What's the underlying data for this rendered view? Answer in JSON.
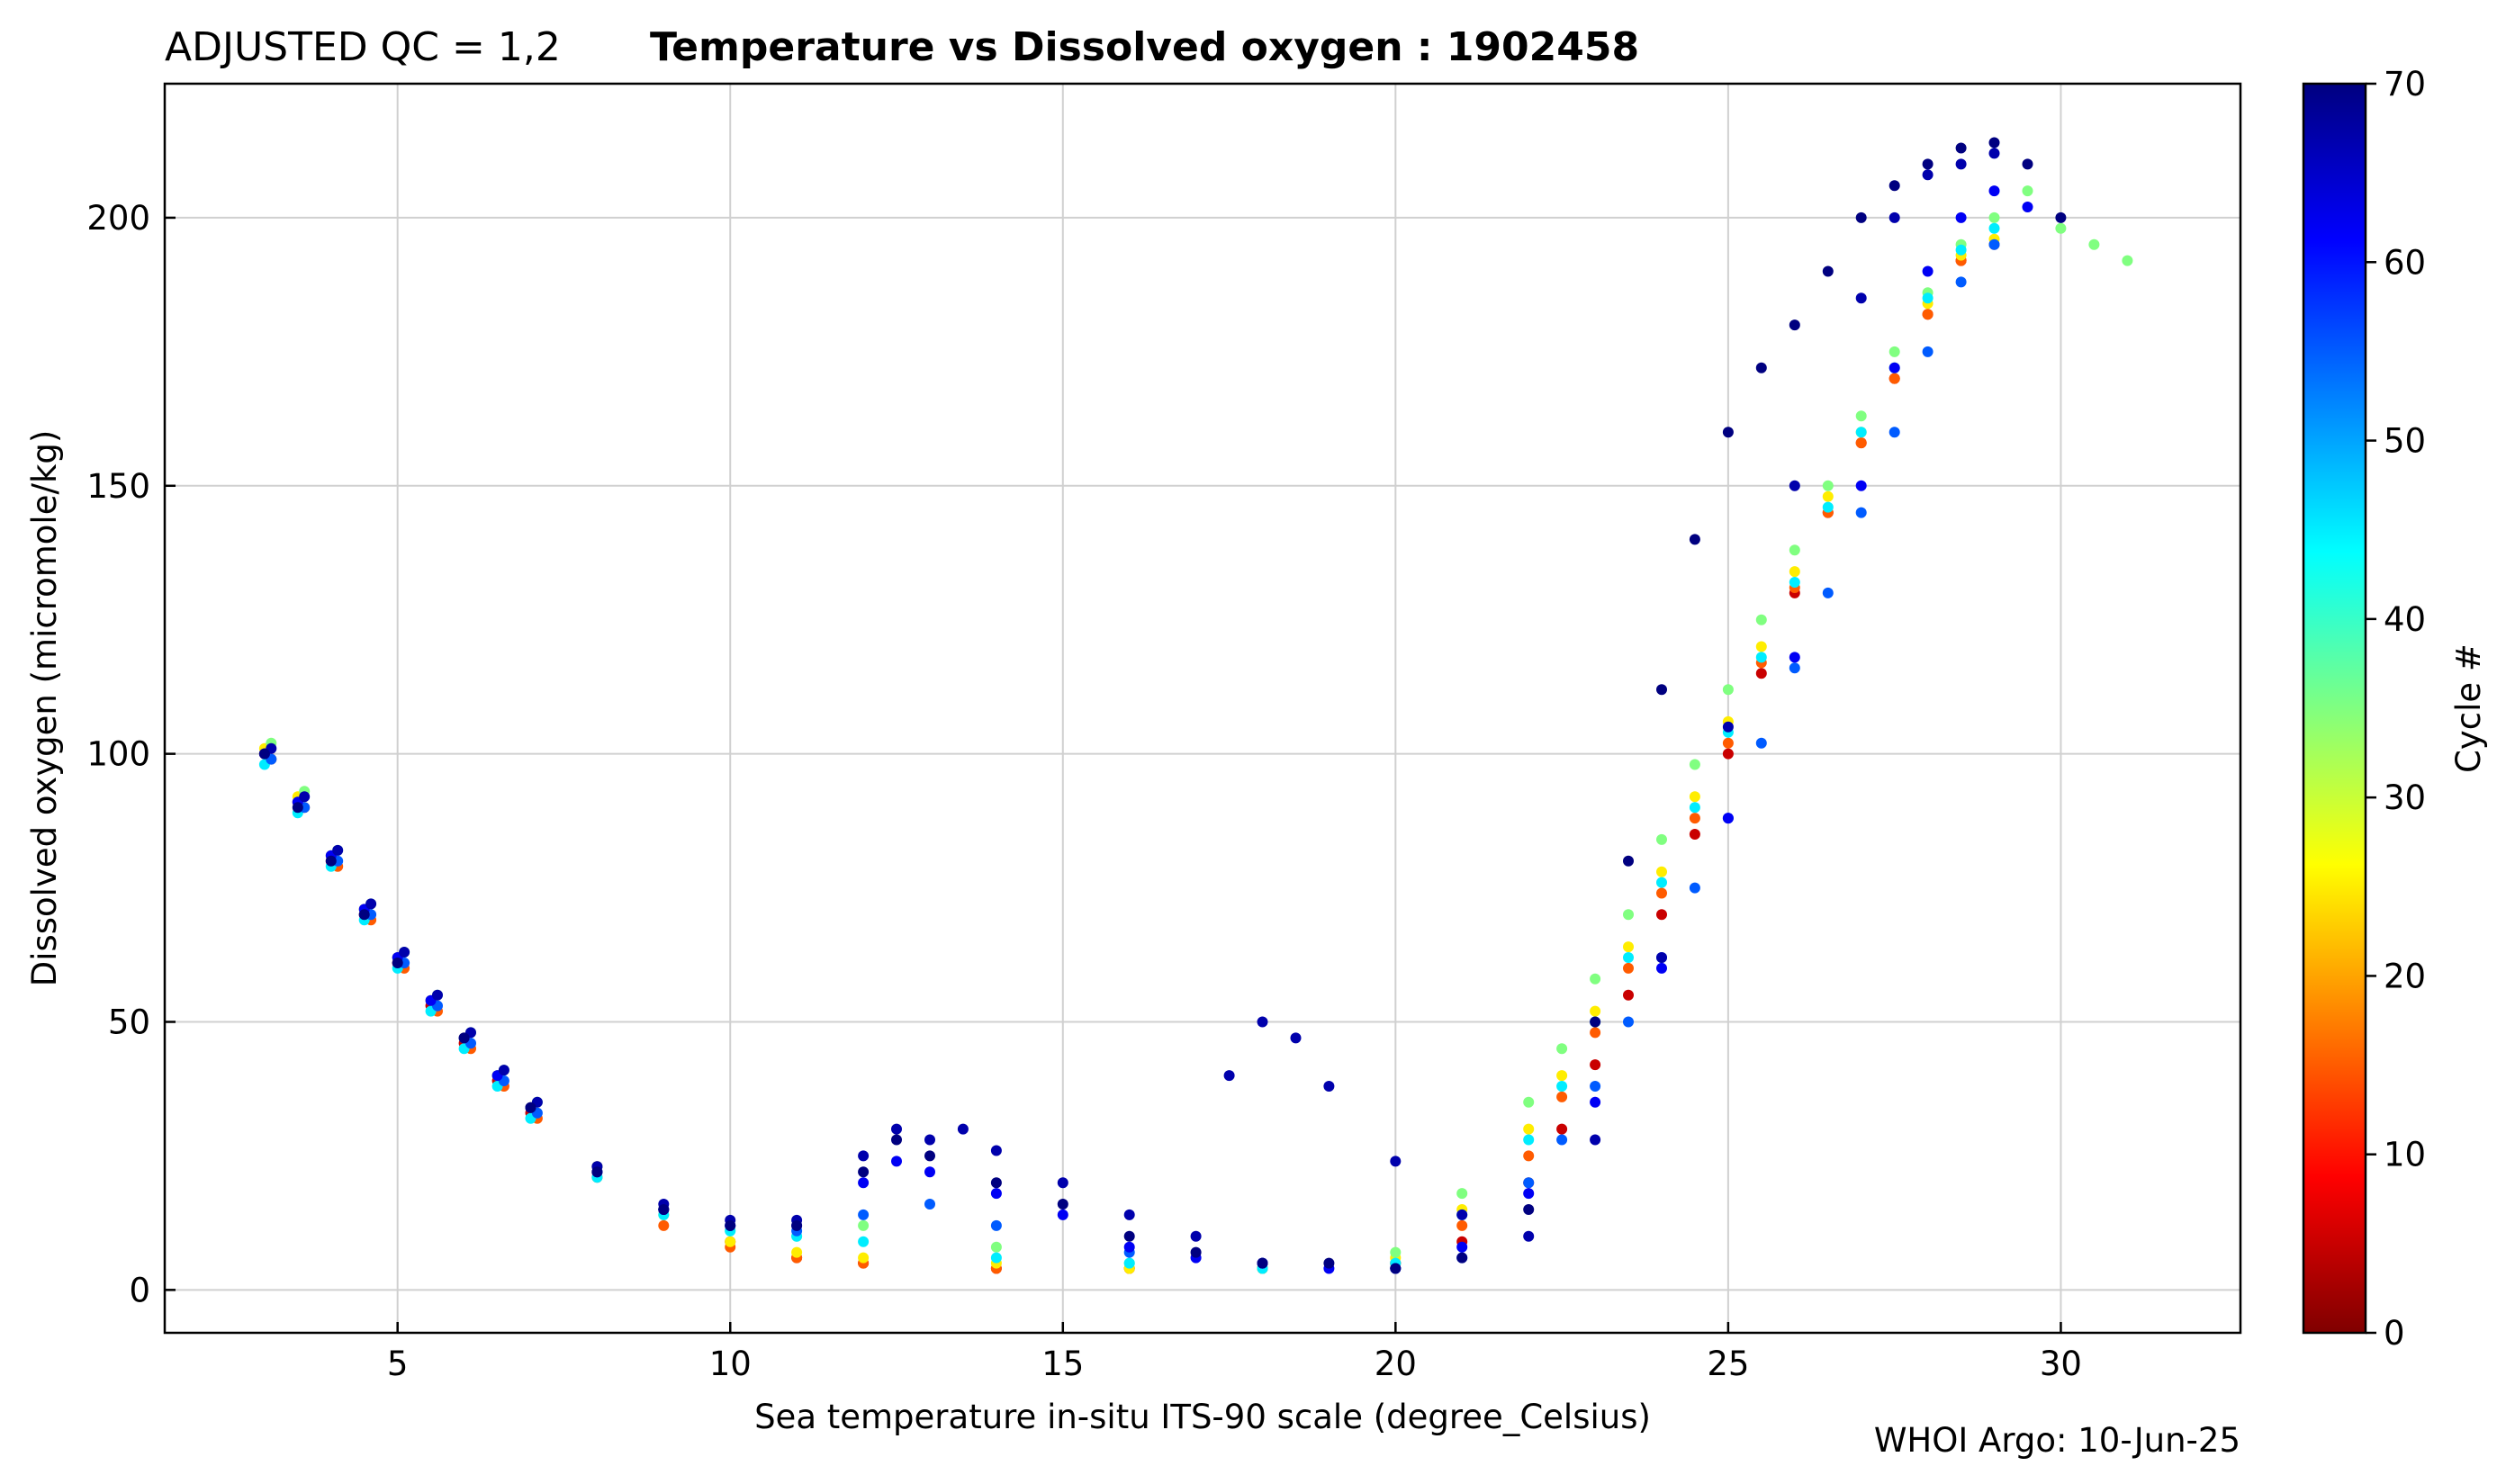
{
  "chart_data": {
    "type": "scatter",
    "title_prefix": "ADJUSTED QC = 1,2",
    "title": "Temperature vs Dissolved oxygen : 1902458",
    "xlabel": "Sea temperature in-situ ITS-90 scale  (degree_Celsius)",
    "ylabel": "Dissolved oxygen  (micromole/kg)",
    "xlim": [
      1.5,
      32.7
    ],
    "ylim": [
      -8,
      225
    ],
    "x_ticks": [
      5,
      10,
      15,
      20,
      25,
      30
    ],
    "y_ticks": [
      0,
      50,
      100,
      150,
      200
    ],
    "grid": true,
    "colorbar": {
      "label": "Cycle #",
      "range": [
        0,
        70
      ],
      "ticks": [
        0,
        10,
        20,
        30,
        40,
        50,
        60,
        70
      ],
      "colormap": "jet",
      "colormap_stops": [
        "#800000",
        "#ff0000",
        "#ff8000",
        "#ffff00",
        "#80ff80",
        "#00ffff",
        "#0080ff",
        "#0000ff",
        "#000080"
      ]
    },
    "footer": "WHOI Argo: 10-Jun-25",
    "series": [
      {
        "cycle": 5,
        "x": [
          3.0,
          3.5,
          4.0,
          4.5,
          5.0,
          5.5,
          6.0,
          6.5,
          7.0,
          8.0,
          9.0,
          10.0,
          11.0,
          12.0,
          14.0,
          16.0,
          18.0,
          20.0,
          21.0,
          22.0,
          22.5,
          23.0,
          23.5,
          24.0,
          24.5,
          25.0,
          25.5,
          26.0,
          26.5,
          27.0,
          27.5,
          28.0,
          28.5
        ],
        "y": [
          100,
          91,
          80,
          70,
          61,
          53,
          46,
          39,
          33,
          23,
          15,
          9,
          6,
          5,
          4,
          4,
          4,
          5,
          9,
          20,
          30,
          42,
          55,
          70,
          85,
          100,
          115,
          130,
          145,
          158,
          170,
          182,
          192
        ]
      },
      {
        "cycle": 15,
        "x": [
          3.1,
          3.6,
          4.1,
          4.6,
          5.1,
          5.6,
          6.1,
          6.6,
          7.1,
          8.0,
          9.0,
          10.0,
          11.0,
          12.0,
          14.0,
          16.0,
          18.0,
          20.0,
          21.0,
          22.0,
          22.5,
          23.0,
          23.5,
          24.0,
          24.5,
          25.0,
          25.5,
          26.0,
          26.5,
          27.0,
          27.5,
          28.0,
          28.5,
          29.0
        ],
        "y": [
          99,
          90,
          79,
          69,
          60,
          52,
          45,
          38,
          32,
          21,
          12,
          8,
          6,
          5,
          4,
          4,
          4,
          5,
          12,
          25,
          36,
          48,
          60,
          74,
          88,
          102,
          117,
          131,
          145,
          158,
          170,
          182,
          192,
          195
        ]
      },
      {
        "cycle": 25,
        "x": [
          3.0,
          3.5,
          4.0,
          4.5,
          5.0,
          5.5,
          6.0,
          6.5,
          7.0,
          8.0,
          9.0,
          10.0,
          11.0,
          12.0,
          14.0,
          16.0,
          18.0,
          20.0,
          21.0,
          22.0,
          22.5,
          23.0,
          23.5,
          24.0,
          24.5,
          25.0,
          25.5,
          26.0,
          26.5,
          27.0,
          27.5,
          28.0,
          28.5,
          29.0
        ],
        "y": [
          101,
          92,
          81,
          71,
          62,
          54,
          47,
          40,
          34,
          22,
          14,
          9,
          7,
          6,
          5,
          4,
          4,
          6,
          15,
          30,
          40,
          52,
          64,
          78,
          92,
          106,
          120,
          134,
          148,
          160,
          172,
          184,
          193,
          196
        ]
      },
      {
        "cycle": 35,
        "x": [
          3.1,
          3.6,
          4.1,
          4.6,
          5.1,
          5.6,
          6.1,
          6.6,
          7.1,
          8.0,
          9.0,
          10.0,
          11.0,
          12.0,
          14.0,
          16.0,
          18.0,
          20.0,
          21.0,
          22.0,
          22.5,
          23.0,
          23.5,
          24.0,
          24.5,
          25.0,
          25.5,
          26.0,
          26.5,
          27.0,
          27.5,
          28.0,
          28.5,
          29.0,
          29.5,
          30.0,
          30.5,
          31.0
        ],
        "y": [
          102,
          93,
          82,
          72,
          63,
          55,
          48,
          41,
          35,
          23,
          15,
          11,
          10,
          12,
          8,
          5,
          4,
          7,
          18,
          35,
          45,
          58,
          70,
          84,
          98,
          112,
          125,
          138,
          150,
          163,
          175,
          186,
          195,
          200,
          205,
          198,
          195,
          192
        ]
      },
      {
        "cycle": 45,
        "x": [
          3.0,
          3.5,
          4.0,
          4.5,
          5.0,
          5.5,
          6.0,
          6.5,
          7.0,
          8.0,
          9.0,
          10.0,
          11.0,
          12.0,
          14.0,
          16.0,
          18.0,
          20.0,
          21.0,
          22.0,
          22.5,
          23.0,
          23.5,
          24.0,
          24.5,
          25.0,
          25.5,
          26.0,
          26.5,
          27.0,
          27.5,
          28.0,
          28.5,
          29.0
        ],
        "y": [
          98,
          89,
          79,
          69,
          60,
          52,
          45,
          38,
          32,
          21,
          14,
          11,
          10,
          9,
          6,
          5,
          4,
          5,
          14,
          28,
          38,
          50,
          62,
          76,
          90,
          104,
          118,
          132,
          146,
          160,
          172,
          185,
          194,
          198
        ]
      },
      {
        "cycle": 55,
        "x": [
          3.1,
          3.6,
          4.1,
          4.6,
          5.1,
          5.6,
          6.1,
          6.6,
          7.1,
          8.0,
          9.0,
          10.0,
          11.0,
          12.0,
          13.0,
          14.0,
          16.0,
          18.0,
          20.0,
          21.0,
          22.0,
          22.5,
          23.0,
          23.5,
          24.0,
          24.5,
          25.0,
          25.5,
          26.0,
          26.5,
          27.0,
          27.5,
          28.0,
          28.5,
          29.0
        ],
        "y": [
          99,
          90,
          80,
          70,
          61,
          53,
          46,
          39,
          33,
          22,
          15,
          12,
          11,
          14,
          16,
          12,
          7,
          5,
          4,
          6,
          20,
          28,
          38,
          50,
          62,
          75,
          88,
          102,
          116,
          130,
          145,
          160,
          175,
          188,
          195
        ]
      },
      {
        "cycle": 62,
        "x": [
          3.0,
          3.5,
          4.0,
          4.5,
          5.0,
          5.5,
          6.0,
          6.5,
          7.0,
          8.0,
          9.0,
          10.0,
          11.0,
          12.0,
          12.5,
          13.0,
          14.0,
          15.0,
          16.0,
          17.0,
          18.0,
          19.0,
          20.0,
          21.0,
          22.0,
          23.0,
          24.0,
          25.0,
          26.0,
          27.0,
          27.5,
          28.0,
          28.5,
          29.0,
          29.5
        ],
        "y": [
          100,
          91,
          81,
          71,
          62,
          54,
          47,
          40,
          34,
          22,
          15,
          12,
          12,
          20,
          24,
          22,
          18,
          14,
          8,
          6,
          5,
          4,
          4,
          8,
          18,
          35,
          60,
          88,
          118,
          150,
          172,
          190,
          200,
          205,
          202
        ]
      },
      {
        "cycle": 67,
        "x": [
          3.1,
          3.6,
          4.1,
          4.6,
          5.1,
          5.6,
          6.1,
          6.6,
          7.1,
          8.0,
          9.0,
          10.0,
          11.0,
          12.0,
          12.5,
          13.0,
          13.5,
          14.0,
          15.0,
          16.0,
          17.0,
          17.5,
          18.0,
          18.5,
          19.0,
          20.0,
          21.0,
          22.0,
          23.0,
          24.0,
          25.0,
          26.0,
          27.0,
          27.5,
          28.0,
          28.5,
          29.0
        ],
        "y": [
          101,
          92,
          82,
          72,
          63,
          55,
          48,
          41,
          35,
          23,
          16,
          13,
          13,
          25,
          30,
          28,
          30,
          26,
          20,
          14,
          10,
          40,
          50,
          47,
          38,
          24,
          14,
          10,
          28,
          62,
          105,
          150,
          185,
          200,
          208,
          210,
          212
        ]
      },
      {
        "cycle": 70,
        "x": [
          3.0,
          3.5,
          4.0,
          4.5,
          5.0,
          6.0,
          7.0,
          8.0,
          9.0,
          10.0,
          11.0,
          12.0,
          12.5,
          13.0,
          14.0,
          15.0,
          16.0,
          17.0,
          18.0,
          19.0,
          20.0,
          21.0,
          22.0,
          23.0,
          23.5,
          24.0,
          24.5,
          25.0,
          25.5,
          26.0,
          26.5,
          27.0,
          27.5,
          28.0,
          28.5,
          29.0,
          29.5,
          30.0
        ],
        "y": [
          100,
          90,
          80,
          70,
          61,
          47,
          34,
          22,
          15,
          12,
          12,
          22,
          28,
          25,
          20,
          16,
          10,
          7,
          5,
          5,
          4,
          6,
          15,
          50,
          80,
          112,
          140,
          160,
          172,
          180,
          190,
          200,
          206,
          210,
          213,
          214,
          210,
          200
        ]
      }
    ]
  }
}
